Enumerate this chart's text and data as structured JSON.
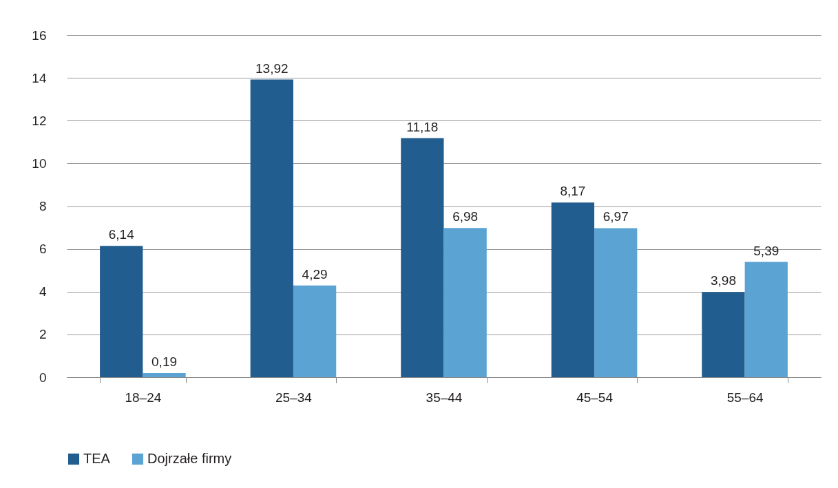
{
  "chart_data": {
    "type": "bar",
    "categories": [
      "18–24",
      "25–34",
      "35–44",
      "45–54",
      "55–64"
    ],
    "series": [
      {
        "name": "TEA",
        "color": "#215d8e",
        "values": [
          6.14,
          13.92,
          11.18,
          8.17,
          3.98
        ],
        "value_labels": [
          "6,14",
          "13,92",
          "11,18",
          "8,17",
          "3,98"
        ]
      },
      {
        "name": "Dojrzałe firmy",
        "color": "#5ba3d3",
        "values": [
          0.19,
          4.29,
          6.98,
          6.97,
          5.39
        ],
        "value_labels": [
          "0,19",
          "4,29",
          "6,98",
          "6,97",
          "5,39"
        ]
      }
    ],
    "ylim": [
      0,
      16
    ],
    "yticks": [
      0,
      2,
      4,
      6,
      8,
      10,
      12,
      14,
      16
    ],
    "grid": "y",
    "legend": "bottom"
  }
}
